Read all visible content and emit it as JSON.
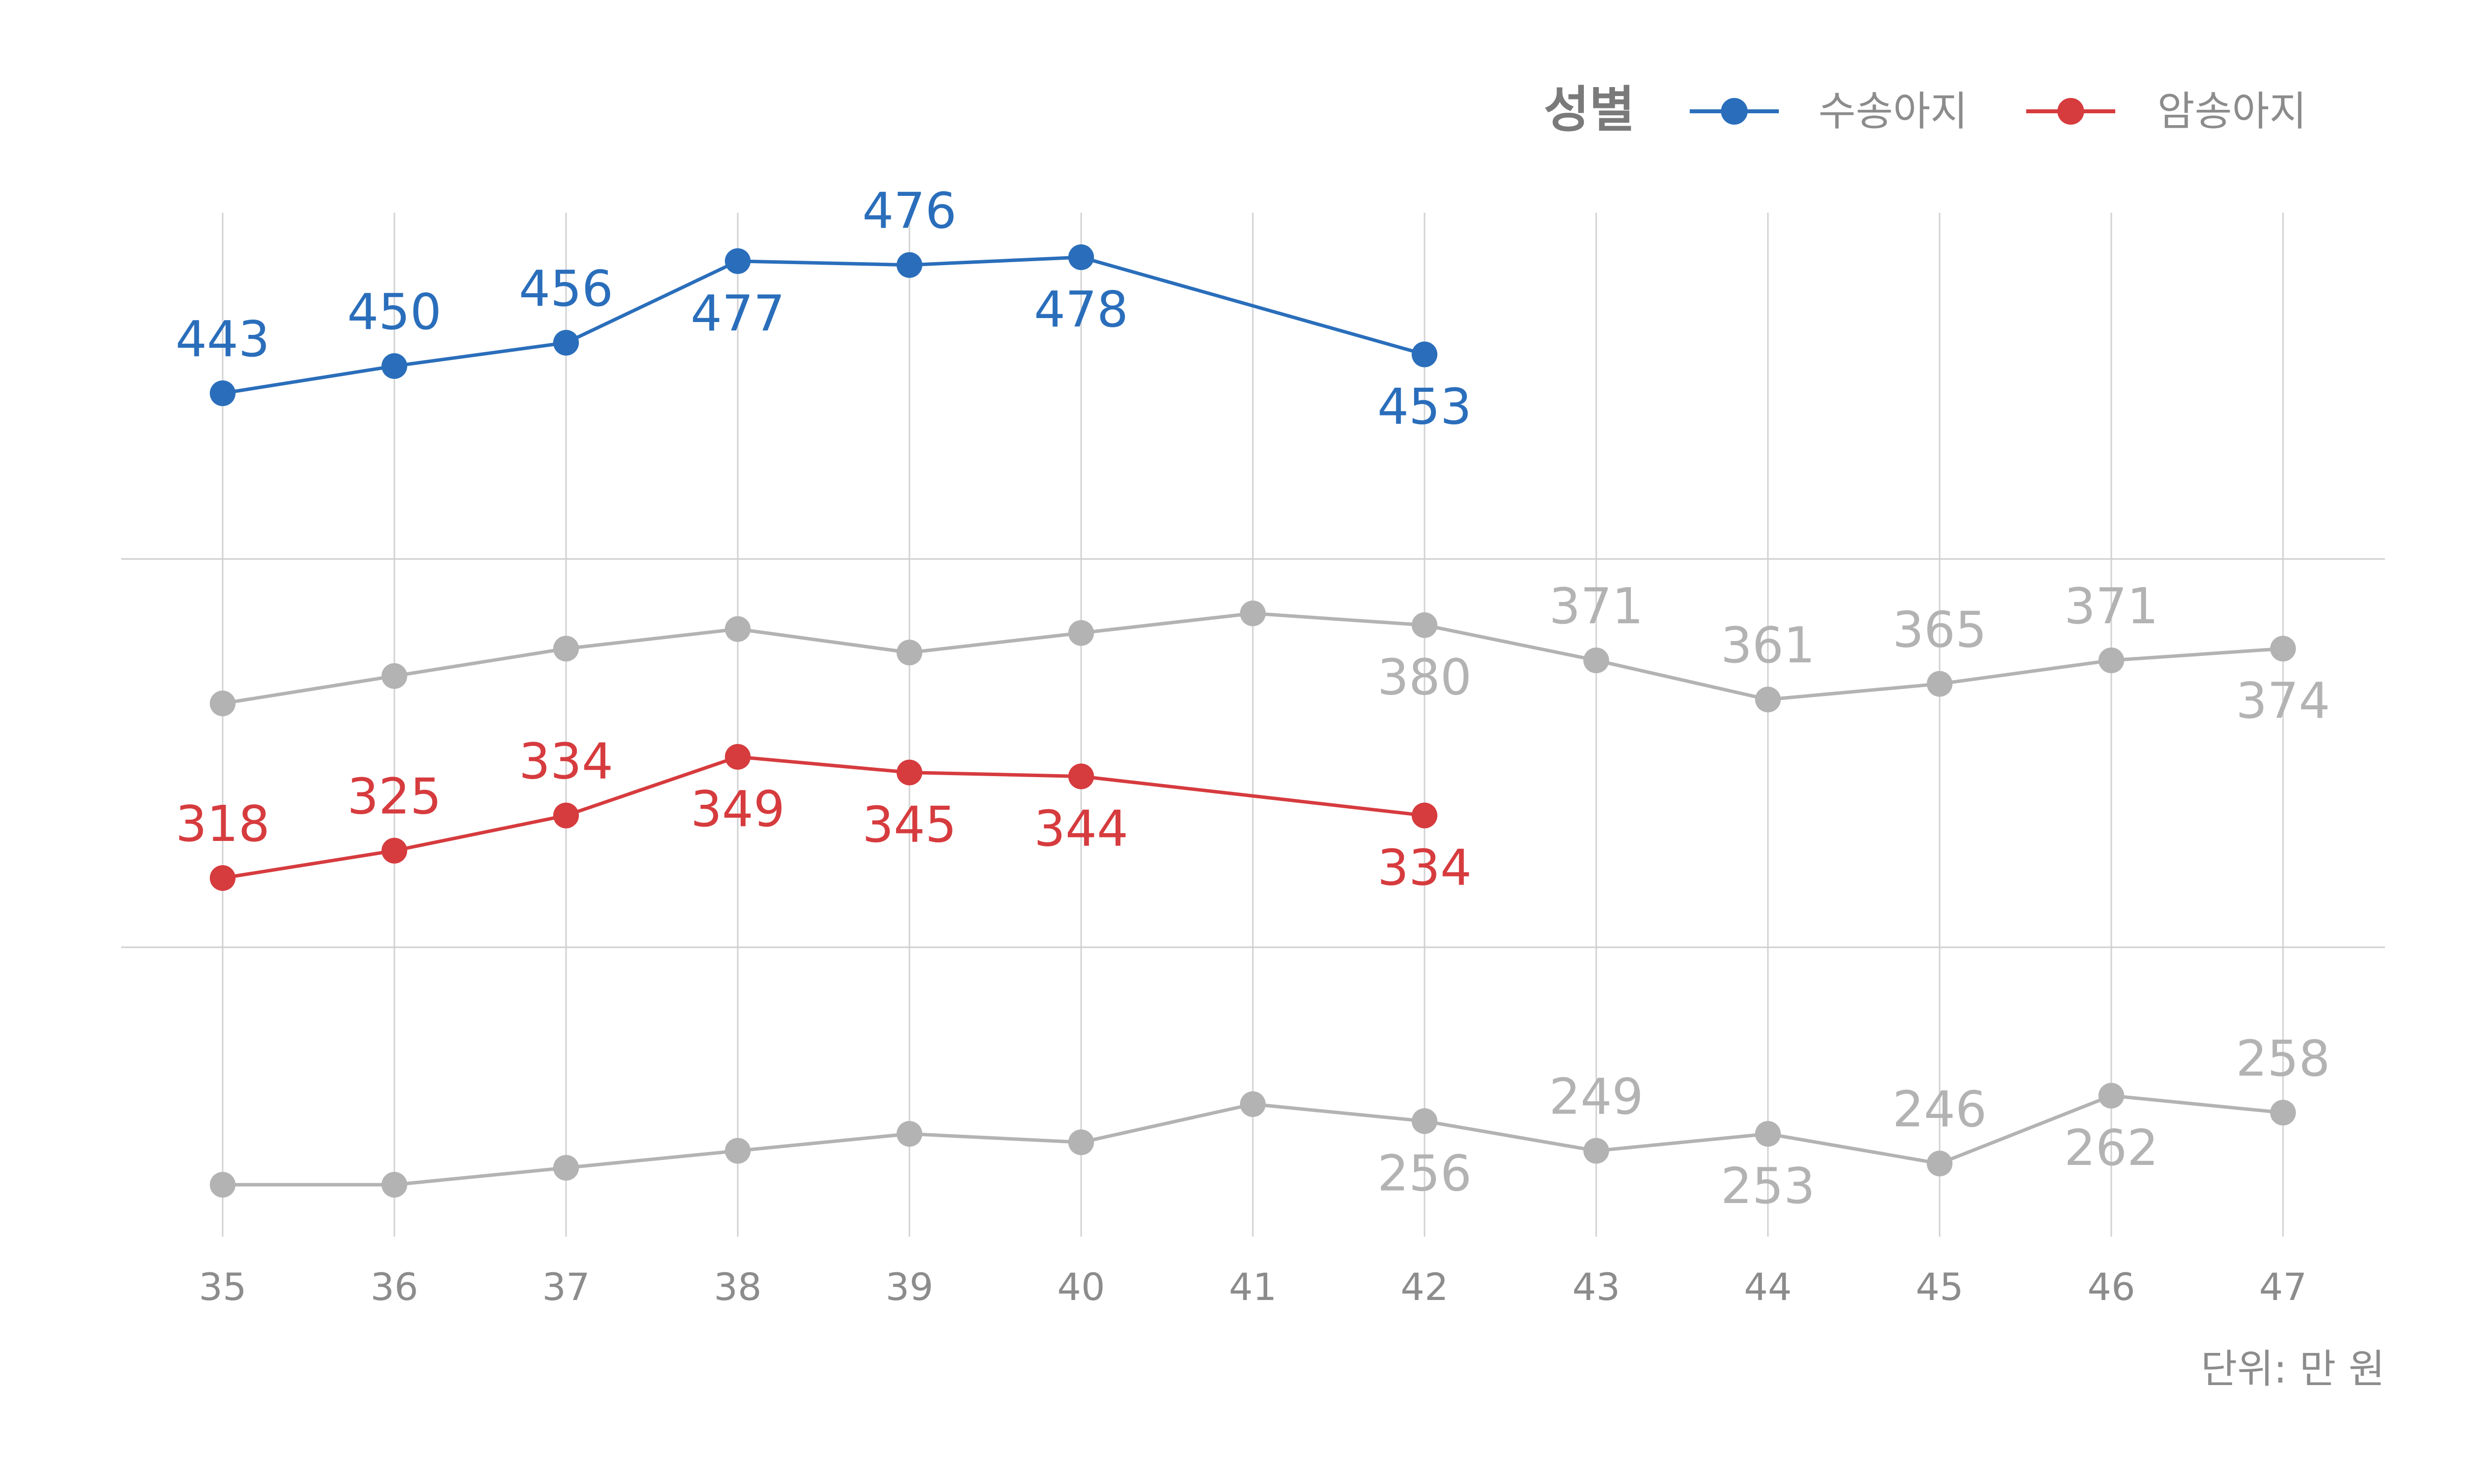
{
  "chart_data": {
    "type": "line",
    "x": [
      35,
      36,
      37,
      38,
      39,
      40,
      41,
      42,
      43,
      44,
      45,
      46,
      47
    ],
    "legend": {
      "title": "성별",
      "position": "top-right",
      "entries": [
        {
          "name": "수송아지",
          "color": "#2a6ebb"
        },
        {
          "name": "암송아지",
          "color": "#d63b3e"
        }
      ]
    },
    "series": [
      {
        "name": "수송아지",
        "color": "#2a6ebb",
        "values": [
          443,
          450,
          456,
          477,
          476,
          478,
          null,
          453,
          null,
          null,
          null,
          null,
          null
        ],
        "labels": [
          "443",
          "450",
          "456",
          "477",
          "476",
          "478",
          null,
          "453",
          null,
          null,
          null,
          null,
          null
        ]
      },
      {
        "name": "",
        "color": "#b3b3b3",
        "values": [
          360,
          367,
          374,
          379,
          373,
          378,
          383,
          380,
          371,
          361,
          365,
          371,
          374
        ],
        "labels": [
          null,
          null,
          null,
          null,
          null,
          null,
          null,
          "380",
          "371",
          "361",
          "365",
          "371",
          "374"
        ]
      },
      {
        "name": "암송아지",
        "color": "#d63b3e",
        "values": [
          318,
          325,
          334,
          349,
          345,
          344,
          null,
          334,
          null,
          null,
          null,
          null,
          null
        ],
        "labels": [
          "318",
          "325",
          "334",
          "349",
          "345",
          "344",
          null,
          "334",
          null,
          null,
          null,
          null,
          null
        ]
      },
      {
        "name": "",
        "color": "#b3b3b3",
        "values": [
          241,
          241,
          245,
          249,
          253,
          251,
          260,
          256,
          249,
          253,
          246,
          262,
          258
        ],
        "labels": [
          null,
          null,
          null,
          null,
          null,
          null,
          null,
          "256",
          "249",
          "253",
          "246",
          "262",
          "258"
        ]
      }
    ],
    "unit_note": "단위: 만 원",
    "grid": true
  }
}
